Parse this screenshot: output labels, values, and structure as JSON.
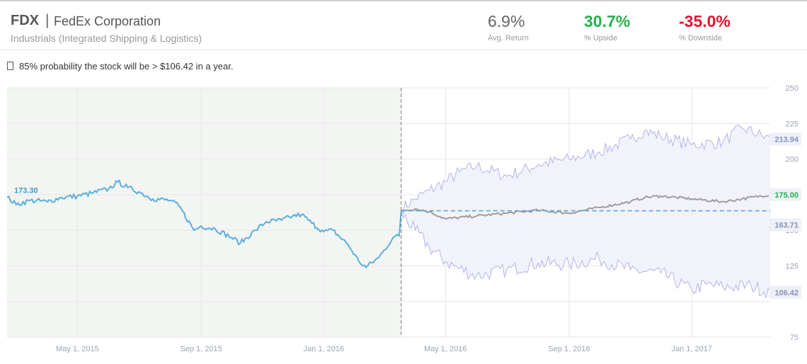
{
  "header": {
    "ticker": "FDX",
    "separator": "|",
    "company": "FedEx Corporation",
    "sector": "Industrials (Integrated Shipping & Logistics)"
  },
  "stats": {
    "avg_return": {
      "value": "6.9%",
      "label": "Avg. Return"
    },
    "upside": {
      "value": "30.7%",
      "label": "% Upside"
    },
    "downside": {
      "value": "-35.0%",
      "label": "% Downside"
    }
  },
  "probability_text": "85% probability the stock will be > $106.42 in a year.",
  "colors": {
    "history": "#5aafdb",
    "median": "#9e9e9e",
    "band_line": "#b4b4e4",
    "band_fill": "#f2f2fa",
    "baseline": "#4aa8d8",
    "upside": "#21b24b",
    "downside": "#e8112d"
  },
  "chart_data": {
    "type": "line",
    "y_ticks": [
      75,
      100,
      125,
      150,
      175,
      200,
      225,
      250
    ],
    "y_tick_labels": [
      "75",
      "",
      "125",
      "150",
      "175",
      "200",
      "225",
      "250"
    ],
    "ylim": [
      75,
      250
    ],
    "x_range": [
      "2015-02-20",
      "2017-03-20"
    ],
    "x_ticks": [
      {
        "date": "2015-05-01",
        "label": "May 1, 2015"
      },
      {
        "date": "2015-09-01",
        "label": "Sep 1, 2015"
      },
      {
        "date": "2016-01-01",
        "label": "Jan 1, 2016"
      },
      {
        "date": "2016-05-01",
        "label": "May 1, 2016"
      },
      {
        "date": "2016-09-01",
        "label": "Sep 1, 2016"
      },
      {
        "date": "2017-01-01",
        "label": "Jan 1, 2017"
      }
    ],
    "forecast_start": "2016-03-18",
    "grid": true,
    "series": [
      {
        "role": "history",
        "points": [
          [
            "2015-02-20",
            173.3
          ],
          [
            "2015-03-01",
            168
          ],
          [
            "2015-03-15",
            171
          ],
          [
            "2015-04-01",
            170
          ],
          [
            "2015-04-15",
            173
          ],
          [
            "2015-05-01",
            174
          ],
          [
            "2015-05-15",
            176
          ],
          [
            "2015-06-01",
            179
          ],
          [
            "2015-06-10",
            184
          ],
          [
            "2015-06-20",
            180
          ],
          [
            "2015-07-01",
            177
          ],
          [
            "2015-07-15",
            172
          ],
          [
            "2015-08-01",
            171
          ],
          [
            "2015-08-10",
            167
          ],
          [
            "2015-08-25",
            150
          ],
          [
            "2015-09-01",
            153
          ],
          [
            "2015-09-15",
            151
          ],
          [
            "2015-10-01",
            145
          ],
          [
            "2015-10-10",
            141
          ],
          [
            "2015-10-25",
            150
          ],
          [
            "2015-11-05",
            156
          ],
          [
            "2015-11-20",
            157
          ],
          [
            "2015-12-01",
            160
          ],
          [
            "2015-12-10",
            161
          ],
          [
            "2015-12-20",
            155
          ],
          [
            "2016-01-01",
            149
          ],
          [
            "2016-01-10",
            150
          ],
          [
            "2016-01-25",
            140
          ],
          [
            "2016-02-05",
            128
          ],
          [
            "2016-02-12",
            124
          ],
          [
            "2016-02-25",
            131
          ],
          [
            "2016-03-01",
            136
          ],
          [
            "2016-03-10",
            145
          ],
          [
            "2016-03-16",
            146
          ],
          [
            "2016-03-18",
            163.71
          ]
        ]
      },
      {
        "role": "median",
        "points": [
          [
            "2016-03-18",
            163.7
          ],
          [
            "2016-04-01",
            165
          ],
          [
            "2016-04-15",
            163
          ],
          [
            "2016-05-01",
            158
          ],
          [
            "2016-06-01",
            160
          ],
          [
            "2016-07-01",
            162
          ],
          [
            "2016-08-01",
            164
          ],
          [
            "2016-09-01",
            162
          ],
          [
            "2016-10-01",
            166
          ],
          [
            "2016-11-01",
            170
          ],
          [
            "2016-11-15",
            173
          ],
          [
            "2016-12-01",
            174
          ],
          [
            "2017-01-01",
            172
          ],
          [
            "2017-02-01",
            170
          ],
          [
            "2017-02-20",
            172
          ],
          [
            "2017-03-20",
            175
          ]
        ]
      },
      {
        "role": "upper",
        "points": [
          [
            "2016-03-18",
            165
          ],
          [
            "2016-04-01",
            172
          ],
          [
            "2016-04-15",
            178
          ],
          [
            "2016-05-01",
            184
          ],
          [
            "2016-05-15",
            191
          ],
          [
            "2016-06-01",
            195
          ],
          [
            "2016-07-01",
            188
          ],
          [
            "2016-08-01",
            196
          ],
          [
            "2016-09-01",
            200
          ],
          [
            "2016-10-01",
            205
          ],
          [
            "2016-11-01",
            214
          ],
          [
            "2016-11-15",
            220
          ],
          [
            "2016-12-01",
            216
          ],
          [
            "2017-01-01",
            210
          ],
          [
            "2017-02-01",
            212
          ],
          [
            "2017-02-20",
            222
          ],
          [
            "2017-03-20",
            213.94
          ]
        ]
      },
      {
        "role": "lower",
        "points": [
          [
            "2016-03-18",
            162
          ],
          [
            "2016-04-01",
            150
          ],
          [
            "2016-04-15",
            138
          ],
          [
            "2016-05-01",
            128
          ],
          [
            "2016-05-15",
            123
          ],
          [
            "2016-06-01",
            118
          ],
          [
            "2016-07-01",
            122
          ],
          [
            "2016-08-01",
            127
          ],
          [
            "2016-09-01",
            126
          ],
          [
            "2016-10-01",
            130
          ],
          [
            "2016-11-01",
            122
          ],
          [
            "2016-12-01",
            120
          ],
          [
            "2017-01-01",
            108
          ],
          [
            "2017-01-15",
            112
          ],
          [
            "2017-02-01",
            110
          ],
          [
            "2017-03-01",
            111
          ],
          [
            "2017-03-20",
            106.42
          ]
        ]
      }
    ],
    "labels": {
      "start_price": "173.30",
      "upper_end": "213.94",
      "median_end": "175.00",
      "current": "163.71",
      "lower_end": "106.42"
    },
    "baseline_value": 163.71
  }
}
